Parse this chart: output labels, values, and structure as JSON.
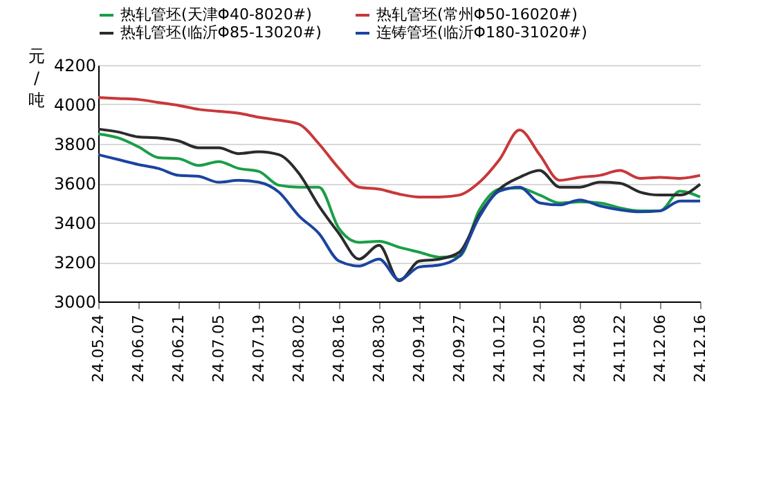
{
  "chart_data": {
    "type": "line",
    "ylabel": "元/吨",
    "categories": [
      "24.05.24",
      null,
      "24.06.07",
      null,
      "24.06.21",
      null,
      "24.07.05",
      null,
      "24.07.19",
      null,
      "24.08.02",
      null,
      "24.08.16",
      null,
      "24.08.30",
      null,
      "24.09.14",
      null,
      "24.09.27",
      null,
      "24.10.12",
      null,
      "24.10.25",
      null,
      "24.11.08",
      null,
      "24.11.22",
      null,
      "24.12.06",
      null,
      "24.12.16"
    ],
    "series": [
      {
        "name": "热轧管坯(天津Φ40-8020#)",
        "color": "#1a9e48",
        "values": [
          3850,
          3830,
          3785,
          3730,
          3725,
          3690,
          3710,
          3675,
          3660,
          3590,
          3580,
          3580,
          3370,
          3300,
          3305,
          3275,
          3250,
          3225,
          3230,
          3465,
          3570,
          3575,
          3540,
          3500,
          3505,
          3500,
          3475,
          3460,
          3460,
          3560,
          3530
        ]
      },
      {
        "name": "热轧管坯(常州Φ50-16020#)",
        "color": "#c8383a",
        "values": [
          4035,
          4030,
          4025,
          4010,
          3995,
          3975,
          3965,
          3955,
          3935,
          3920,
          3900,
          3800,
          3675,
          3580,
          3570,
          3545,
          3530,
          3530,
          3540,
          3605,
          3720,
          3870,
          3745,
          3615,
          3630,
          3640,
          3665,
          3625,
          3630,
          3625,
          3640
        ]
      },
      {
        "name": "热轧管坯(临沂Φ85-13020#)",
        "color": "#2b2b2b",
        "values": [
          3875,
          3860,
          3835,
          3830,
          3815,
          3780,
          3780,
          3750,
          3760,
          3745,
          3650,
          3485,
          3345,
          3215,
          3285,
          3105,
          3205,
          3215,
          3250,
          3440,
          3570,
          3630,
          3665,
          3580,
          3580,
          3605,
          3600,
          3555,
          3540,
          3540,
          3595
        ]
      },
      {
        "name": "连铸管坯(临沂Φ180-31020#)",
        "color": "#1b44a0",
        "values": [
          3745,
          3720,
          3695,
          3675,
          3640,
          3635,
          3605,
          3615,
          3605,
          3555,
          3435,
          3345,
          3205,
          3180,
          3215,
          3110,
          3175,
          3185,
          3230,
          3430,
          3560,
          3580,
          3500,
          3490,
          3515,
          3485,
          3465,
          3455,
          3460,
          3510,
          3510
        ]
      }
    ],
    "ylim": [
      3000,
      4200
    ],
    "yticks": [
      3000,
      3200,
      3400,
      3600,
      3800,
      4000,
      4200
    ],
    "grid": "y",
    "legend": "top",
    "marker": "none",
    "line_style": "solid"
  }
}
